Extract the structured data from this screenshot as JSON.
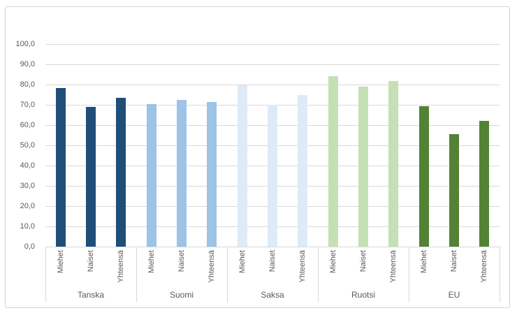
{
  "chart_data": {
    "type": "bar",
    "title": "",
    "categories": [
      "Miehet",
      "Naiset",
      "Yhteensä"
    ],
    "groups": [
      {
        "name": "Tanska",
        "color": "#1F4E79",
        "values": [
          78.2,
          69.1,
          73.4
        ]
      },
      {
        "name": "Suomi",
        "color": "#9DC3E6",
        "values": [
          70.5,
          72.4,
          71.4
        ]
      },
      {
        "name": "Saksa",
        "color": "#DEEBF7",
        "values": [
          79.5,
          70.1,
          74.7
        ]
      },
      {
        "name": "Ruotsi",
        "color": "#C5E0B4",
        "values": [
          84.1,
          78.9,
          81.6
        ]
      },
      {
        "name": "EU",
        "color": "#548235",
        "values": [
          69.4,
          55.4,
          62.2
        ]
      }
    ],
    "y_axis": {
      "min": 0,
      "max": 100,
      "step": 10,
      "tick_labels": [
        "0,0",
        "10,0",
        "20,0",
        "30,0",
        "40,0",
        "50,0",
        "60,0",
        "70,0",
        "80,0",
        "90,0",
        "100,0"
      ]
    },
    "grid": true,
    "legend": "none"
  },
  "colors": {
    "gridline": "#D9D9D9",
    "axis_line": "#D9D9D9",
    "axis_text": "#595959",
    "frame_border": "#D2D2D2",
    "background": "#FFFFFF"
  }
}
